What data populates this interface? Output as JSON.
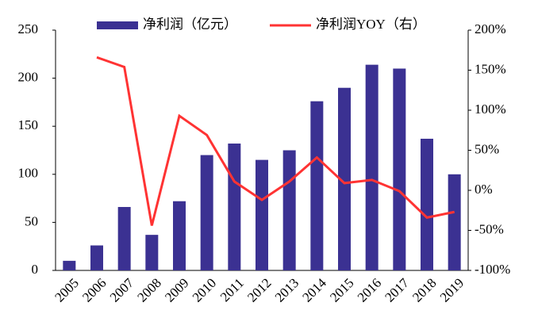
{
  "chart_data": {
    "type": "bar",
    "categories": [
      "2005",
      "2006",
      "2007",
      "2008",
      "2009",
      "2010",
      "2011",
      "2012",
      "2013",
      "2014",
      "2015",
      "2016",
      "2017",
      "2018",
      "2019"
    ],
    "series": [
      {
        "name": "净利润（亿元）",
        "type": "bar",
        "color": "#3b3192",
        "values": [
          10,
          26,
          66,
          37,
          72,
          120,
          132,
          115,
          125,
          176,
          190,
          214,
          210,
          137,
          100
        ]
      },
      {
        "name": "净利润YOY（右）",
        "type": "line",
        "axis": "y2",
        "color": "#ff3333",
        "values": [
          null,
          166,
          154,
          -44,
          93,
          69,
          11,
          -12,
          11,
          41,
          9,
          13,
          -1,
          -34,
          -27
        ]
      }
    ],
    "ylim": [
      0,
      250
    ],
    "yticks": [
      0,
      50,
      100,
      150,
      200,
      250
    ],
    "y2lim": [
      -100,
      200
    ],
    "y2ticks": [
      {
        "value": -100,
        "label": "-100%"
      },
      {
        "value": -50,
        "label": "-50%"
      },
      {
        "value": 0,
        "label": "0%"
      },
      {
        "value": 50,
        "label": "50%"
      },
      {
        "value": 100,
        "label": "100%"
      },
      {
        "value": 150,
        "label": "150%"
      },
      {
        "value": 200,
        "label": "200%"
      }
    ],
    "grid": false,
    "legend": "top"
  }
}
